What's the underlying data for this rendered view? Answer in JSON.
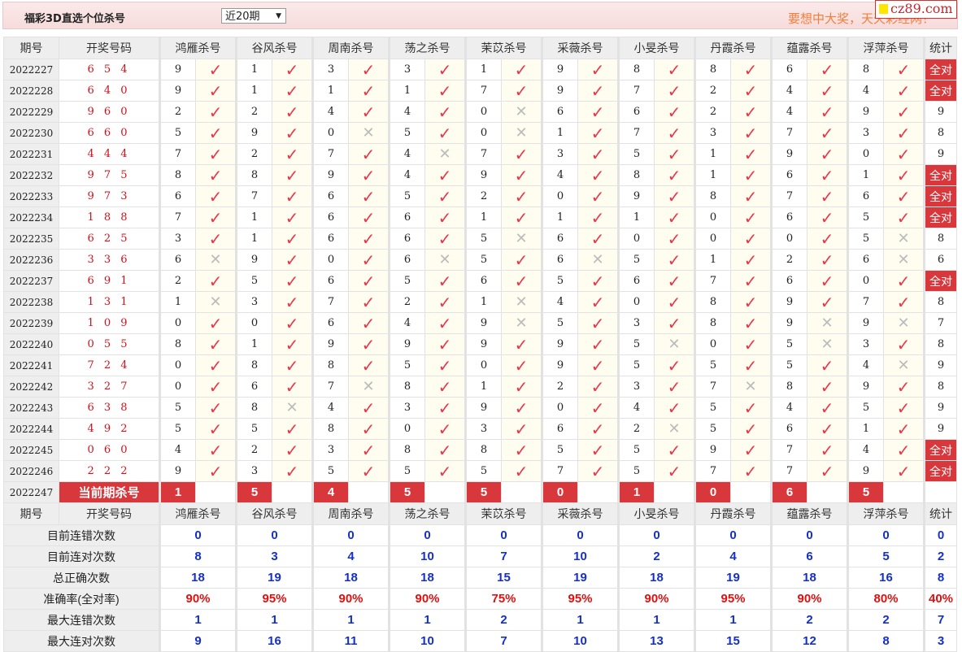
{
  "header": {
    "title": "福彩3D直选个位杀号",
    "period_select": "近20期",
    "slogan": "要想中大奖，天天彩经网！",
    "logo": "cz89.com"
  },
  "columns": {
    "period": "期号",
    "draw": "开奖号码",
    "killers": [
      "鸿雁杀号",
      "谷风杀号",
      "周南杀号",
      "荡之杀号",
      "茉苡杀号",
      "采薇杀号",
      "小旻杀号",
      "丹霞杀号",
      "蕴露杀号",
      "浮萍杀号"
    ],
    "stat": "统计"
  },
  "icons": {
    "hit": "check-icon",
    "miss": "cross-icon"
  },
  "colors": {
    "accent": "#d8383c",
    "check": "#e8364a",
    "draw_number": "#d0101b",
    "stat_value": "#1530c8"
  },
  "rows": [
    {
      "period": "2022227",
      "draw": "6 5 4",
      "kills": [
        9,
        1,
        3,
        3,
        1,
        9,
        8,
        8,
        6,
        8
      ],
      "hit": [
        1,
        1,
        1,
        1,
        1,
        1,
        1,
        1,
        1,
        1
      ],
      "stat": "全对"
    },
    {
      "period": "2022228",
      "draw": "6 4 0",
      "kills": [
        9,
        1,
        1,
        1,
        7,
        9,
        7,
        2,
        4,
        4
      ],
      "hit": [
        1,
        1,
        1,
        1,
        1,
        1,
        1,
        1,
        1,
        1
      ],
      "stat": "全对"
    },
    {
      "period": "2022229",
      "draw": "9 6 0",
      "kills": [
        2,
        2,
        4,
        4,
        0,
        6,
        6,
        2,
        4,
        9
      ],
      "hit": [
        1,
        1,
        1,
        1,
        0,
        1,
        1,
        1,
        1,
        1
      ],
      "stat": "9"
    },
    {
      "period": "2022230",
      "draw": "6 6 0",
      "kills": [
        5,
        9,
        0,
        5,
        0,
        1,
        7,
        3,
        7,
        3
      ],
      "hit": [
        1,
        1,
        0,
        1,
        0,
        1,
        1,
        1,
        1,
        1
      ],
      "stat": "8"
    },
    {
      "period": "2022231",
      "draw": "4 4 4",
      "kills": [
        7,
        2,
        7,
        4,
        7,
        3,
        5,
        1,
        9,
        0
      ],
      "hit": [
        1,
        1,
        1,
        0,
        1,
        1,
        1,
        1,
        1,
        1
      ],
      "stat": "9"
    },
    {
      "period": "2022232",
      "draw": "9 7 5",
      "kills": [
        8,
        8,
        9,
        4,
        9,
        4,
        8,
        1,
        6,
        1
      ],
      "hit": [
        1,
        1,
        1,
        1,
        1,
        1,
        1,
        1,
        1,
        1
      ],
      "stat": "全对"
    },
    {
      "period": "2022233",
      "draw": "9 7 3",
      "kills": [
        6,
        7,
        6,
        5,
        2,
        0,
        9,
        8,
        7,
        6
      ],
      "hit": [
        1,
        1,
        1,
        1,
        1,
        1,
        1,
        1,
        1,
        1
      ],
      "stat": "全对"
    },
    {
      "period": "2022234",
      "draw": "1 8 8",
      "kills": [
        7,
        1,
        6,
        6,
        1,
        1,
        1,
        0,
        6,
        5
      ],
      "hit": [
        1,
        1,
        1,
        1,
        1,
        1,
        1,
        1,
        1,
        1
      ],
      "stat": "全对"
    },
    {
      "period": "2022235",
      "draw": "6 2 5",
      "kills": [
        3,
        1,
        6,
        6,
        5,
        6,
        0,
        0,
        0,
        5
      ],
      "hit": [
        1,
        1,
        1,
        1,
        0,
        1,
        1,
        1,
        1,
        0
      ],
      "stat": "8"
    },
    {
      "period": "2022236",
      "draw": "3 3 6",
      "kills": [
        6,
        9,
        0,
        6,
        5,
        6,
        5,
        1,
        2,
        6
      ],
      "hit": [
        0,
        1,
        1,
        0,
        1,
        0,
        1,
        1,
        1,
        0
      ],
      "stat": "6"
    },
    {
      "period": "2022237",
      "draw": "6 9 1",
      "kills": [
        2,
        5,
        6,
        5,
        6,
        5,
        6,
        7,
        6,
        0
      ],
      "hit": [
        1,
        1,
        1,
        1,
        1,
        1,
        1,
        1,
        1,
        1
      ],
      "stat": "全对"
    },
    {
      "period": "2022238",
      "draw": "1 3 1",
      "kills": [
        1,
        3,
        7,
        2,
        1,
        4,
        0,
        8,
        9,
        7
      ],
      "hit": [
        0,
        1,
        1,
        1,
        0,
        1,
        1,
        1,
        1,
        1
      ],
      "stat": "8"
    },
    {
      "period": "2022239",
      "draw": "1 0 9",
      "kills": [
        0,
        0,
        6,
        4,
        9,
        5,
        3,
        8,
        9,
        9
      ],
      "hit": [
        1,
        1,
        1,
        1,
        0,
        1,
        1,
        1,
        0,
        0
      ],
      "stat": "7"
    },
    {
      "period": "2022240",
      "draw": "0 5 5",
      "kills": [
        8,
        1,
        9,
        9,
        9,
        9,
        5,
        0,
        5,
        3
      ],
      "hit": [
        1,
        1,
        1,
        1,
        1,
        1,
        0,
        1,
        0,
        1
      ],
      "stat": "8"
    },
    {
      "period": "2022241",
      "draw": "7 2 4",
      "kills": [
        0,
        8,
        8,
        5,
        0,
        9,
        5,
        5,
        5,
        4
      ],
      "hit": [
        1,
        1,
        1,
        1,
        1,
        1,
        1,
        1,
        1,
        0
      ],
      "stat": "9"
    },
    {
      "period": "2022242",
      "draw": "3 2 7",
      "kills": [
        0,
        6,
        7,
        8,
        1,
        2,
        3,
        7,
        8,
        9
      ],
      "hit": [
        1,
        1,
        0,
        1,
        1,
        1,
        1,
        0,
        1,
        1
      ],
      "stat": "8"
    },
    {
      "period": "2022243",
      "draw": "6 3 8",
      "kills": [
        5,
        8,
        4,
        3,
        9,
        0,
        4,
        5,
        4,
        5
      ],
      "hit": [
        1,
        0,
        1,
        1,
        1,
        1,
        1,
        1,
        1,
        1
      ],
      "stat": "9"
    },
    {
      "period": "2022244",
      "draw": "4 9 2",
      "kills": [
        5,
        5,
        8,
        0,
        3,
        6,
        2,
        5,
        6,
        1
      ],
      "hit": [
        1,
        1,
        1,
        1,
        1,
        1,
        0,
        1,
        1,
        1
      ],
      "stat": "9"
    },
    {
      "period": "2022245",
      "draw": "0 6 0",
      "kills": [
        4,
        2,
        3,
        8,
        8,
        5,
        5,
        9,
        7,
        4
      ],
      "hit": [
        1,
        1,
        1,
        1,
        1,
        1,
        1,
        1,
        1,
        1
      ],
      "stat": "全对"
    },
    {
      "period": "2022246",
      "draw": "2 2 2",
      "kills": [
        9,
        3,
        5,
        5,
        5,
        7,
        5,
        7,
        7,
        9
      ],
      "hit": [
        1,
        1,
        1,
        1,
        1,
        1,
        1,
        1,
        1,
        1
      ],
      "stat": "全对"
    }
  ],
  "current": {
    "period": "2022247",
    "label": "当前期杀号",
    "kills": [
      1,
      5,
      4,
      5,
      5,
      0,
      1,
      0,
      6,
      5
    ]
  },
  "stats": [
    {
      "label": "目前连错次数",
      "values": [
        "0",
        "0",
        "0",
        "0",
        "0",
        "0",
        "0",
        "0",
        "0",
        "0",
        "0"
      ]
    },
    {
      "label": "目前连对次数",
      "values": [
        "8",
        "3",
        "4",
        "10",
        "7",
        "10",
        "2",
        "4",
        "6",
        "5",
        "2"
      ]
    },
    {
      "label": "总正确次数",
      "values": [
        "18",
        "19",
        "18",
        "18",
        "15",
        "19",
        "18",
        "19",
        "18",
        "16",
        "8"
      ]
    },
    {
      "label": "准确率(全对率)",
      "values": [
        "90%",
        "95%",
        "90%",
        "90%",
        "75%",
        "95%",
        "90%",
        "95%",
        "90%",
        "80%",
        "40%"
      ],
      "pct": true
    },
    {
      "label": "最大连错次数",
      "values": [
        "1",
        "1",
        "1",
        "1",
        "2",
        "1",
        "1",
        "1",
        "2",
        "2",
        "7"
      ]
    },
    {
      "label": "最大连对次数",
      "values": [
        "9",
        "16",
        "11",
        "10",
        "7",
        "10",
        "13",
        "15",
        "12",
        "8",
        "3"
      ]
    }
  ]
}
